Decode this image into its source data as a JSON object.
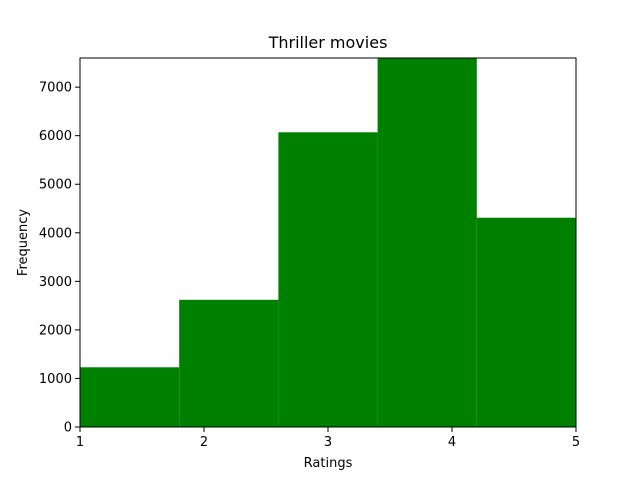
{
  "chart_data": {
    "type": "bar",
    "title": "Thriller movies",
    "xlabel": "Ratings",
    "ylabel": "Frequency",
    "bins": [
      {
        "start": 1.0,
        "end": 1.8,
        "value": 1230
      },
      {
        "start": 1.8,
        "end": 2.6,
        "value": 2620
      },
      {
        "start": 2.6,
        "end": 3.4,
        "value": 6070
      },
      {
        "start": 3.4,
        "end": 4.2,
        "value": 7600
      },
      {
        "start": 4.2,
        "end": 5.0,
        "value": 4310
      }
    ],
    "xlim": [
      1,
      5
    ],
    "ylim": [
      0,
      7600
    ],
    "xticks": [
      1,
      2,
      3,
      4,
      5
    ],
    "yticks": [
      0,
      1000,
      2000,
      3000,
      4000,
      5000,
      6000,
      7000
    ],
    "bar_color": "#008000",
    "grid": false
  }
}
